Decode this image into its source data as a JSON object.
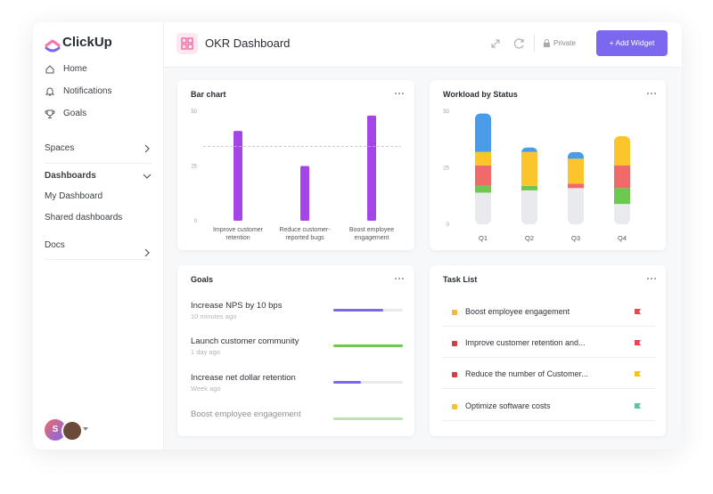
{
  "sidebar": {
    "brand": "ClickUp",
    "nav": [
      "Home",
      "Notifications",
      "Goals"
    ],
    "spaces": "Spaces",
    "dashboards": "Dashboards",
    "dashboard_items": [
      "My Dashboard",
      "Shared dashboards"
    ],
    "docs": "Docs",
    "avatar": "S"
  },
  "header": {
    "title": "OKR Dashboard",
    "private": "Private",
    "add_widget": "+ Add Widget"
  },
  "bar_chart": {
    "type": "bar",
    "title": "Bar chart",
    "categories": [
      "Improve customer retention",
      "Reduce customer-reported bugs",
      "Boost employee engagement"
    ],
    "values": [
      41,
      25,
      48
    ],
    "color": "#a445e8",
    "reference_line": 34,
    "ylim": [
      0,
      50
    ],
    "yticks": [
      0,
      25,
      50
    ]
  },
  "workload": {
    "type": "stacked_bar",
    "title": "Workload by Status",
    "categories": [
      "Q1",
      "Q2",
      "Q3",
      "Q4"
    ],
    "series": [
      {
        "color": "#e9eaee",
        "values": [
          14,
          15,
          16,
          9
        ]
      },
      {
        "color": "#6bc950",
        "values": [
          3,
          2,
          0,
          7
        ]
      },
      {
        "color": "#f06a6a",
        "values": [
          9,
          0,
          2,
          10
        ]
      },
      {
        "color": "#fdc52c",
        "values": [
          6,
          15,
          11,
          13
        ]
      },
      {
        "color": "#4a9ce8",
        "values": [
          17,
          2,
          3,
          0
        ]
      }
    ],
    "ylim": [
      0,
      50
    ],
    "yticks": [
      0,
      25,
      50
    ]
  },
  "goals": {
    "title": "Goals",
    "items": [
      {
        "name": "Increase NPS by 10 bps",
        "time": "10 minutes ago",
        "progress": 72,
        "color": "#7b68ee"
      },
      {
        "name": "Launch customer community",
        "time": "1 day ago",
        "progress": 100,
        "color": "#6bc950"
      },
      {
        "name": "Increase net dollar retention",
        "time": "Week ago",
        "progress": 40,
        "color": "#7b68ee"
      },
      {
        "name": "Boost employee engagement",
        "progress": 100,
        "color": "#b9e5ab"
      }
    ]
  },
  "tasks": {
    "title": "Task List",
    "items": [
      {
        "name": "Boost employee engagement",
        "dot": "#f6b73c",
        "flag": "#e5484d"
      },
      {
        "name": "Improve customer retention and...",
        "dot": "#d33d44",
        "flag": "#e5484d"
      },
      {
        "name": "Reduce the number of Customer...",
        "dot": "#d33d44",
        "flag": "#f5c518"
      },
      {
        "name": "Optimize software costs",
        "dot": "#f7c12b",
        "flag": "#5fc3a6"
      }
    ]
  }
}
